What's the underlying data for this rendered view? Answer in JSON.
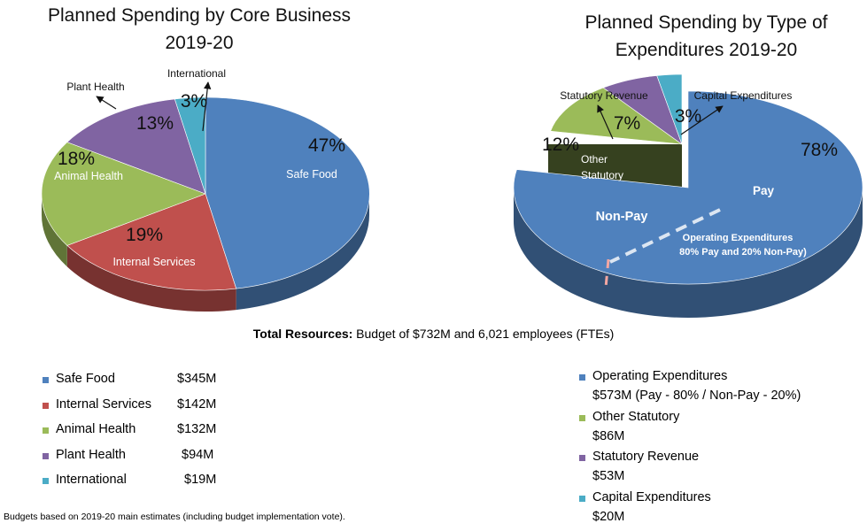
{
  "chart_data": [
    {
      "type": "pie",
      "title_line1": "Planned Spending by Core Business",
      "title_line2": "2019-20",
      "slices": [
        {
          "label": "Safe Food",
          "percent": 47,
          "percent_label": "47%",
          "value_label": "$345M",
          "color": "#4f81bd"
        },
        {
          "label": "Internal Services",
          "percent": 19,
          "percent_label": "19%",
          "value_label": "$142M",
          "color": "#c0504d"
        },
        {
          "label": "Animal Health",
          "percent": 18,
          "percent_label": "18%",
          "value_label": "$132M",
          "color": "#9bbb59"
        },
        {
          "label": "Plant Health",
          "percent": 13,
          "percent_label": "13%",
          "value_label": "$94M",
          "color": "#8064a2"
        },
        {
          "label": "International",
          "percent": 3,
          "percent_label": "3%",
          "value_label": "$19M",
          "color": "#4bacc6"
        }
      ]
    },
    {
      "type": "pie",
      "title_line1": "Planned Spending by Type of",
      "title_line2": "Expenditures 2019-20",
      "slices": [
        {
          "label": "Operating Expenditures",
          "percent": 78,
          "percent_label": "78%",
          "value_label": "$573M (Pay - 80% / Non-Pay - 20%)",
          "color": "#4f81bd"
        },
        {
          "label": "Other Statutory",
          "chart_label_line1": "Other",
          "chart_label_line2": "Statutory",
          "percent": 12,
          "percent_label": "12%",
          "value_label": "$86M",
          "color": "#9bbb59"
        },
        {
          "label": "Statutory Revenue",
          "percent": 7,
          "percent_label": "7%",
          "value_label": "$53M",
          "color": "#8064a2"
        },
        {
          "label": "Capital Expenditures",
          "percent": 3,
          "percent_label": "3%",
          "value_label": "$20M",
          "color": "#4bacc6"
        }
      ],
      "operating_split": {
        "pay_label": "Pay",
        "non_pay_label": "Non-Pay",
        "pay_percent": 80,
        "non_pay_percent": 20,
        "note_line1": "Operating Expenditures",
        "note_line2": "80% Pay and 20% Non-Pay)"
      }
    }
  ],
  "total": {
    "bold": "Total Resources:",
    "text": " Budget of $732M and 6,021 employees (FTEs)"
  },
  "footnote": "Budgets  based on 2019-20 main estimates (including budget implementation vote)."
}
